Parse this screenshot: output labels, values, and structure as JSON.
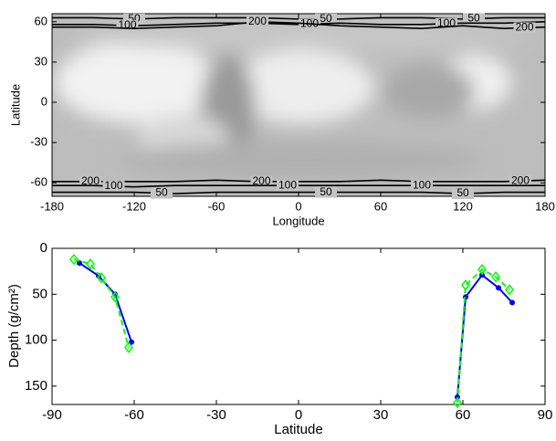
{
  "chart_data": [
    {
      "type": "map",
      "xlabel": "Longitude",
      "ylabel": "Latitude",
      "xlim": [
        -180,
        180
      ],
      "xticks": [
        -180,
        -120,
        -60,
        0,
        60,
        120,
        180
      ],
      "ylim": [
        -70,
        66
      ],
      "yticks": [
        -60,
        -30,
        0,
        30,
        60
      ],
      "contour_lon": [
        -180,
        -150,
        -120,
        -90,
        -60,
        -30,
        0,
        30,
        60,
        90,
        120,
        150,
        180
      ],
      "contours": [
        {
          "label": "50",
          "lat": [
            63,
            63,
            62,
            63,
            63,
            63,
            62,
            62,
            63,
            63,
            62,
            63,
            63
          ],
          "label_lon": [
            -120,
            20,
            128
          ]
        },
        {
          "label": "100",
          "lat": [
            58,
            58,
            57,
            58,
            59,
            59,
            58,
            59,
            58,
            58,
            59,
            59,
            60
          ],
          "label_lon": [
            -125,
            8,
            108
          ]
        },
        {
          "label": "200",
          "lat": [
            56,
            56,
            55,
            56,
            57,
            60,
            59,
            57,
            56,
            55,
            57,
            55,
            56
          ],
          "label_lon": [
            -30,
            165
          ]
        },
        {
          "label": "200",
          "lat": [
            -59,
            -59,
            -59,
            -59,
            -58,
            -59,
            -59,
            -59,
            -58,
            -59,
            -59,
            -59,
            -58
          ],
          "label_lon": [
            -152,
            -27,
            162
          ]
        },
        {
          "label": "100",
          "lat": [
            -62,
            -62,
            -63,
            -62,
            -62,
            -62,
            -62,
            -62,
            -62,
            -62,
            -62,
            -62,
            -62
          ],
          "label_lon": [
            -135,
            -8,
            90
          ]
        },
        {
          "label": "50",
          "lat": [
            -67,
            -67,
            -67,
            -68,
            -67,
            -67,
            -67,
            -67,
            -67,
            -67,
            -68,
            -67,
            -67
          ],
          "label_lon": [
            -100,
            20,
            120
          ]
        }
      ]
    },
    {
      "type": "line",
      "xlabel": "Latitude",
      "ylabel": "Depth (g/cm²)",
      "xlim": [
        -90,
        90
      ],
      "xticks": [
        -90,
        -60,
        -30,
        0,
        30,
        60,
        90
      ],
      "ylim": [
        0,
        170
      ],
      "yticks": [
        0,
        50,
        100,
        150
      ],
      "y_reversed": true,
      "series": [
        {
          "color": "#0000ff",
          "dashed": false,
          "marker": "dot",
          "x": [
            -80,
            -73,
            -67,
            -61,
            null,
            58,
            61,
            67,
            73,
            78
          ],
          "values": [
            16,
            30,
            50,
            102,
            null,
            162,
            53,
            29,
            43,
            59
          ]
        },
        {
          "color": "#00ff00",
          "dashed": true,
          "marker": "diamond",
          "x": [
            -82,
            -76,
            -72,
            -67,
            -62,
            null,
            58,
            61,
            67,
            72,
            77
          ],
          "values": [
            12,
            17,
            32,
            53,
            108,
            null,
            168,
            40,
            23,
            31,
            45
          ]
        }
      ]
    }
  ]
}
